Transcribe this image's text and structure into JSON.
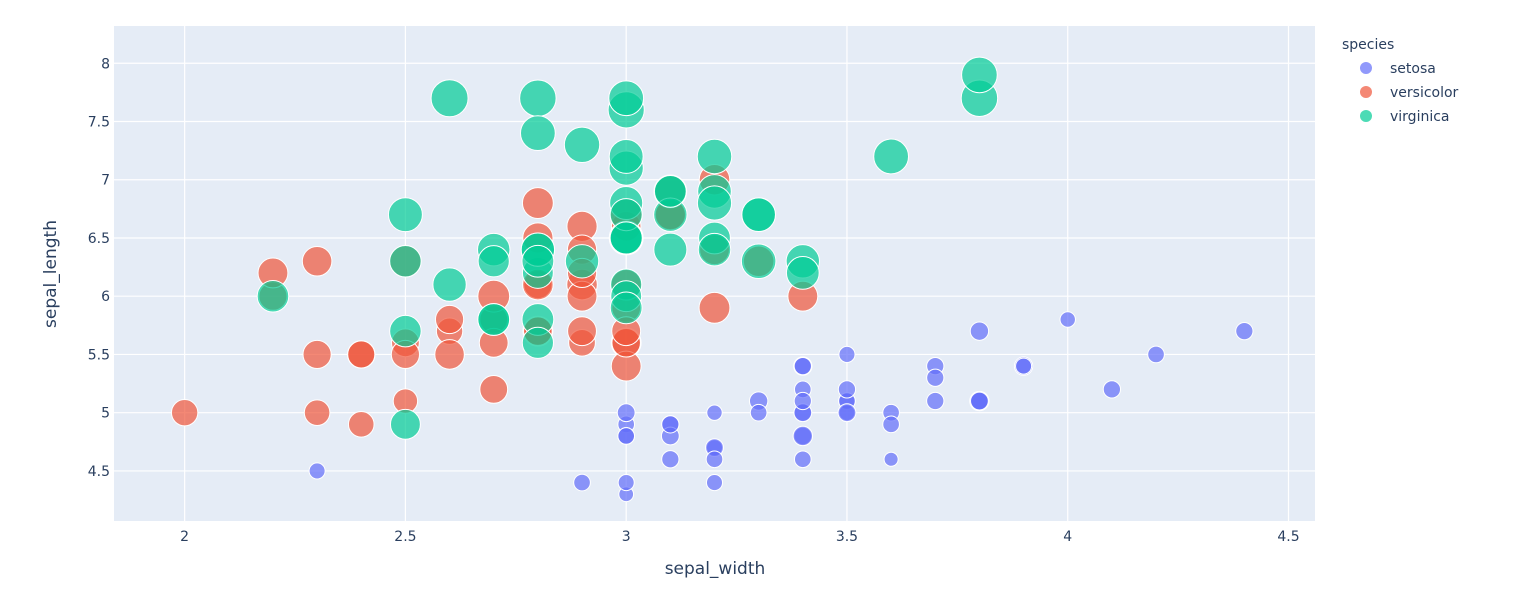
{
  "chart_data": {
    "type": "scatter",
    "xlabel": "sepal_width",
    "ylabel": "sepal_length",
    "xlim": [
      1.84,
      4.56
    ],
    "ylim": [
      4.07,
      8.32
    ],
    "x_ticks": [
      "2",
      "2.5",
      "3",
      "3.5",
      "4",
      "4.5"
    ],
    "y_ticks": [
      "4.5",
      "5",
      "5.5",
      "6",
      "6.5",
      "7",
      "7.5",
      "8"
    ],
    "grid": true,
    "legend": {
      "title": "species",
      "placement": "right"
    },
    "series": [
      {
        "name": "setosa",
        "color": "#636efa",
        "points": [
          [
            3.5,
            5.1,
            1.4
          ],
          [
            3.0,
            4.9,
            1.4
          ],
          [
            3.2,
            4.7,
            1.3
          ],
          [
            3.1,
            4.6,
            1.5
          ],
          [
            3.6,
            5.0,
            1.4
          ],
          [
            3.9,
            5.4,
            1.7
          ],
          [
            3.4,
            4.6,
            1.4
          ],
          [
            3.4,
            5.0,
            1.5
          ],
          [
            2.9,
            4.4,
            1.4
          ],
          [
            3.1,
            4.9,
            1.5
          ],
          [
            3.7,
            5.4,
            1.5
          ],
          [
            3.4,
            4.8,
            1.6
          ],
          [
            3.0,
            4.8,
            1.4
          ],
          [
            3.0,
            4.3,
            1.1
          ],
          [
            4.0,
            5.8,
            1.2
          ],
          [
            4.4,
            5.7,
            1.5
          ],
          [
            3.9,
            5.4,
            1.3
          ],
          [
            3.5,
            5.1,
            1.4
          ],
          [
            3.8,
            5.7,
            1.7
          ],
          [
            3.8,
            5.1,
            1.5
          ],
          [
            3.4,
            5.4,
            1.7
          ],
          [
            3.7,
            5.1,
            1.5
          ],
          [
            3.6,
            4.6,
            1.0
          ],
          [
            3.3,
            5.1,
            1.7
          ],
          [
            3.4,
            4.8,
            1.9
          ],
          [
            3.0,
            5.0,
            1.6
          ],
          [
            3.4,
            5.0,
            1.6
          ],
          [
            3.5,
            5.2,
            1.5
          ],
          [
            3.4,
            5.2,
            1.4
          ],
          [
            3.2,
            4.7,
            1.6
          ],
          [
            3.1,
            4.8,
            1.6
          ],
          [
            3.4,
            5.4,
            1.5
          ],
          [
            4.1,
            5.2,
            1.5
          ],
          [
            4.2,
            5.5,
            1.4
          ],
          [
            3.1,
            4.9,
            1.5
          ],
          [
            3.2,
            5.0,
            1.2
          ],
          [
            3.5,
            5.5,
            1.3
          ],
          [
            3.6,
            4.9,
            1.4
          ],
          [
            3.0,
            4.4,
            1.3
          ],
          [
            3.4,
            5.1,
            1.5
          ],
          [
            3.5,
            5.0,
            1.3
          ],
          [
            2.3,
            4.5,
            1.3
          ],
          [
            3.2,
            4.4,
            1.3
          ],
          [
            3.5,
            5.0,
            1.6
          ],
          [
            3.8,
            5.1,
            1.9
          ],
          [
            3.0,
            4.8,
            1.4
          ],
          [
            3.8,
            5.1,
            1.6
          ],
          [
            3.2,
            4.6,
            1.4
          ],
          [
            3.7,
            5.3,
            1.5
          ],
          [
            3.3,
            5.0,
            1.4
          ]
        ]
      },
      {
        "name": "versicolor",
        "color": "#ef553b",
        "points": [
          [
            3.2,
            7.0,
            4.7
          ],
          [
            3.2,
            6.4,
            4.5
          ],
          [
            3.1,
            6.9,
            4.9
          ],
          [
            2.3,
            5.5,
            4.0
          ],
          [
            2.8,
            6.5,
            4.6
          ],
          [
            2.8,
            5.7,
            4.5
          ],
          [
            3.3,
            6.3,
            4.7
          ],
          [
            2.4,
            4.9,
            3.3
          ],
          [
            2.9,
            6.6,
            4.6
          ],
          [
            2.7,
            5.2,
            3.9
          ],
          [
            2.0,
            5.0,
            3.5
          ],
          [
            3.0,
            5.9,
            4.2
          ],
          [
            2.2,
            6.0,
            4.0
          ],
          [
            2.9,
            6.1,
            4.7
          ],
          [
            2.9,
            5.6,
            3.6
          ],
          [
            3.1,
            6.7,
            4.4
          ],
          [
            3.0,
            5.6,
            4.5
          ],
          [
            2.7,
            5.8,
            4.1
          ],
          [
            2.2,
            6.2,
            4.5
          ],
          [
            2.5,
            5.6,
            3.9
          ],
          [
            3.2,
            5.9,
            4.8
          ],
          [
            2.8,
            6.1,
            4.0
          ],
          [
            2.5,
            6.3,
            4.9
          ],
          [
            2.8,
            6.1,
            4.7
          ],
          [
            2.9,
            6.4,
            4.3
          ],
          [
            3.0,
            6.6,
            4.4
          ],
          [
            2.8,
            6.8,
            4.8
          ],
          [
            3.0,
            6.7,
            5.0
          ],
          [
            2.9,
            6.0,
            4.5
          ],
          [
            2.6,
            5.7,
            3.5
          ],
          [
            2.4,
            5.5,
            3.8
          ],
          [
            2.4,
            5.5,
            3.7
          ],
          [
            2.7,
            5.8,
            3.9
          ],
          [
            2.7,
            6.0,
            5.1
          ],
          [
            3.0,
            5.4,
            4.5
          ],
          [
            3.4,
            6.0,
            4.5
          ],
          [
            3.1,
            6.7,
            4.7
          ],
          [
            2.3,
            6.3,
            4.4
          ],
          [
            3.0,
            5.6,
            4.1
          ],
          [
            2.5,
            5.5,
            4.0
          ],
          [
            2.6,
            5.5,
            4.4
          ],
          [
            3.0,
            6.1,
            4.6
          ],
          [
            2.6,
            5.8,
            4.0
          ],
          [
            2.3,
            5.0,
            3.3
          ],
          [
            2.7,
            5.6,
            4.2
          ],
          [
            3.0,
            5.7,
            4.2
          ],
          [
            2.9,
            5.7,
            4.2
          ],
          [
            2.9,
            6.2,
            4.3
          ],
          [
            2.5,
            5.1,
            3.0
          ],
          [
            2.8,
            5.7,
            4.1
          ]
        ]
      },
      {
        "name": "virginica",
        "color": "#00cc96",
        "points": [
          [
            3.3,
            6.3,
            6.0
          ],
          [
            2.7,
            5.8,
            5.1
          ],
          [
            3.0,
            7.1,
            5.9
          ],
          [
            2.9,
            6.3,
            5.6
          ],
          [
            3.0,
            6.5,
            5.8
          ],
          [
            3.0,
            7.6,
            6.6
          ],
          [
            2.5,
            4.9,
            4.5
          ],
          [
            2.9,
            7.3,
            6.3
          ],
          [
            2.5,
            6.7,
            5.8
          ],
          [
            3.6,
            7.2,
            6.1
          ],
          [
            3.2,
            6.5,
            5.1
          ],
          [
            2.7,
            6.4,
            5.3
          ],
          [
            3.0,
            6.8,
            5.5
          ],
          [
            2.5,
            5.7,
            5.0
          ],
          [
            2.8,
            5.8,
            5.1
          ],
          [
            3.2,
            6.4,
            5.3
          ],
          [
            3.0,
            6.5,
            5.5
          ],
          [
            3.8,
            7.7,
            6.7
          ],
          [
            2.6,
            7.7,
            6.9
          ],
          [
            2.2,
            6.0,
            5.0
          ],
          [
            3.2,
            6.9,
            5.7
          ],
          [
            2.8,
            5.6,
            4.9
          ],
          [
            2.8,
            7.7,
            6.7
          ],
          [
            2.7,
            6.3,
            4.9
          ],
          [
            3.3,
            6.7,
            5.7
          ],
          [
            3.2,
            7.2,
            6.0
          ],
          [
            2.8,
            6.2,
            4.8
          ],
          [
            3.0,
            6.1,
            4.9
          ],
          [
            2.8,
            6.4,
            5.6
          ],
          [
            3.0,
            7.2,
            5.8
          ],
          [
            2.8,
            7.4,
            6.1
          ],
          [
            3.8,
            7.9,
            6.4
          ],
          [
            2.8,
            6.4,
            5.6
          ],
          [
            2.8,
            6.3,
            5.1
          ],
          [
            2.6,
            6.1,
            5.6
          ],
          [
            3.0,
            7.7,
            6.1
          ],
          [
            3.4,
            6.3,
            5.6
          ],
          [
            3.1,
            6.4,
            5.5
          ],
          [
            3.0,
            6.0,
            4.8
          ],
          [
            3.1,
            6.9,
            5.4
          ],
          [
            3.1,
            6.7,
            5.6
          ],
          [
            3.1,
            6.9,
            5.1
          ],
          [
            2.7,
            5.8,
            5.1
          ],
          [
            3.2,
            6.8,
            5.9
          ],
          [
            3.3,
            6.7,
            5.7
          ],
          [
            3.0,
            6.7,
            5.2
          ],
          [
            2.5,
            6.3,
            5.0
          ],
          [
            3.0,
            6.5,
            5.2
          ],
          [
            3.4,
            6.2,
            5.4
          ],
          [
            3.0,
            5.9,
            5.1
          ]
        ]
      }
    ]
  }
}
